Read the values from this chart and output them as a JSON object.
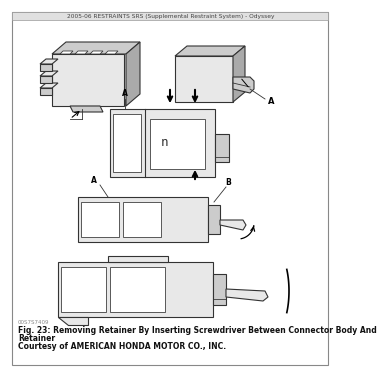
{
  "header_text": "2005-06 RESTRAINTS SRS (Supplemental Restraint System) - Odyssey",
  "caption_line1": "Fig. 23: Removing Retainer By Inserting Screwdriver Between Connector Body And",
  "caption_line2": "Retainer",
  "caption_line3": "Courtesy of AMERICAN HONDA MOTOR CO., INC.",
  "watermark": "00S7S7409",
  "bg_color": "#f0f0f0",
  "border_color": "#999999",
  "header_bg": "#e0e0e0",
  "fig_bg": "#ffffff",
  "line_color": "#333333",
  "line_width": 0.8
}
